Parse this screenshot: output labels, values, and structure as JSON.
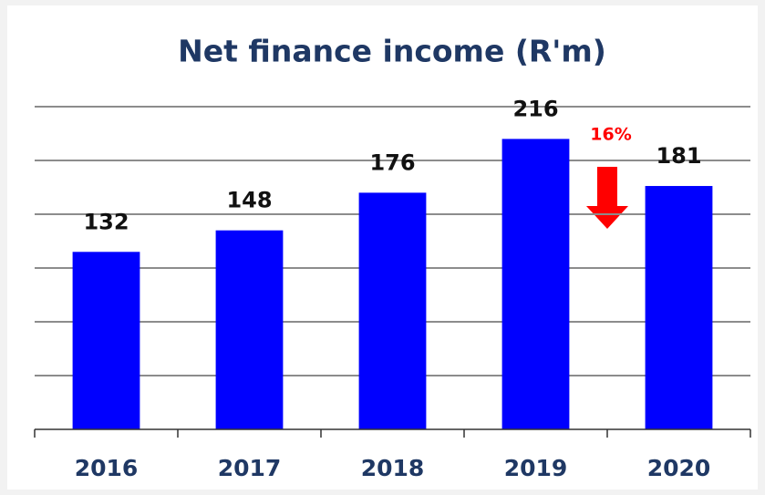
{
  "chart_data": {
    "type": "bar",
    "title": "Net finance income (R'm)",
    "categories": [
      "2016",
      "2017",
      "2018",
      "2019",
      "2020"
    ],
    "values": [
      132,
      148,
      176,
      216,
      181
    ],
    "color": "#0000ff",
    "ylim": [
      0,
      240
    ],
    "yticks": [
      0,
      40,
      80,
      120,
      160,
      200,
      240
    ],
    "grid": true,
    "annotation": "16%"
  }
}
